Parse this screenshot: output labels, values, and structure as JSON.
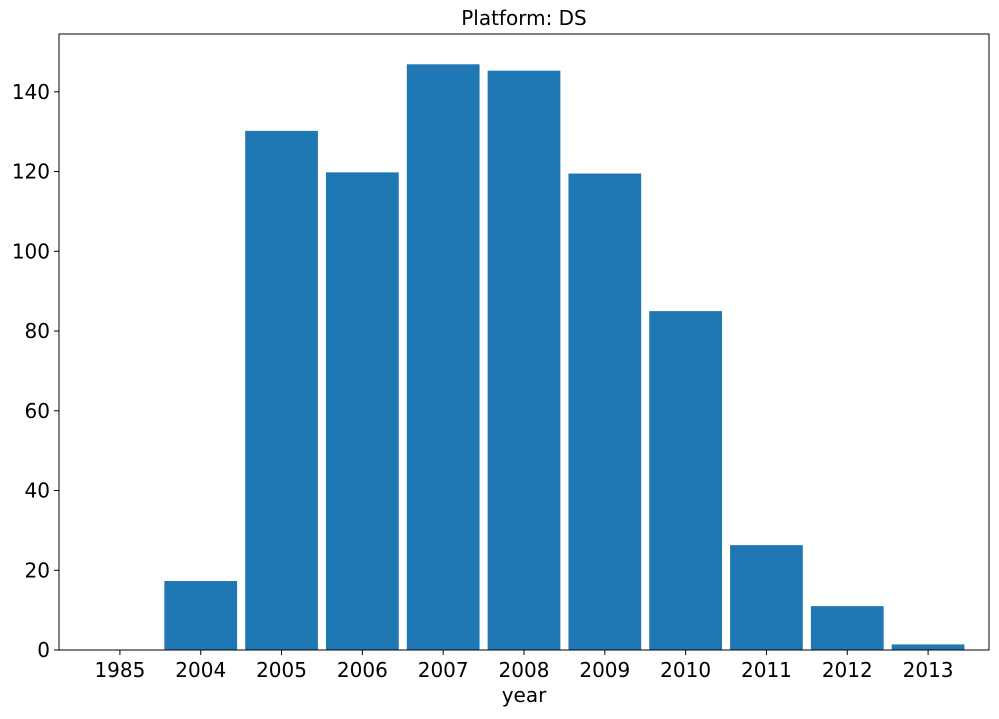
{
  "chart_data": {
    "type": "bar",
    "title": "Platform: DS",
    "xlabel": "year",
    "ylabel": "",
    "categories": [
      "1985",
      "2004",
      "2005",
      "2006",
      "2007",
      "2008",
      "2009",
      "2010",
      "2011",
      "2012",
      "2013"
    ],
    "values": [
      0.02,
      17.3,
      130.2,
      119.8,
      146.9,
      145.3,
      119.5,
      85.0,
      26.3,
      11.0,
      1.4
    ],
    "ylim": [
      0,
      154.5
    ],
    "yticks": [
      0,
      20,
      40,
      60,
      80,
      100,
      120,
      140
    ],
    "bar_color": "#1f77b4",
    "grid": false,
    "legend": "none"
  }
}
